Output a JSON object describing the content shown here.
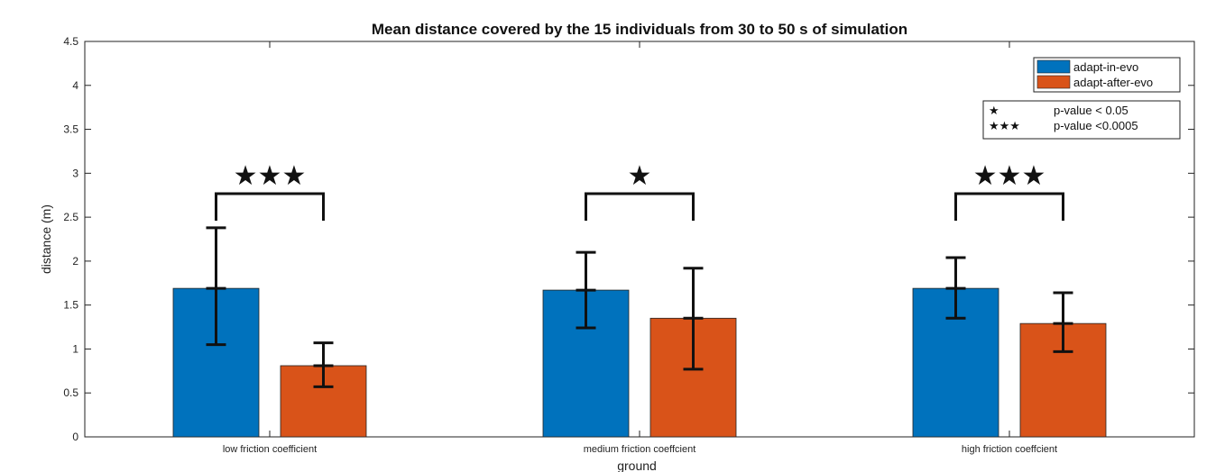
{
  "chart_data": {
    "type": "bar",
    "title": "Mean distance covered by the 15 individuals from 30 to 50 s of simulation",
    "xlabel": "ground",
    "ylabel": "distance (m)",
    "ylim": [
      0,
      4.5
    ],
    "yticks": [
      0,
      0.5,
      1,
      1.5,
      2,
      2.5,
      3,
      3.5,
      4,
      4.5
    ],
    "categories": [
      "low friction coefficient",
      "medium friction coeffcient",
      "high friction coeffcient"
    ],
    "series": [
      {
        "name": "adapt-in-evo",
        "color": "#0072BD",
        "values": [
          1.69,
          1.67,
          1.69
        ],
        "err_low": [
          1.05,
          1.24,
          1.35
        ],
        "err_high": [
          2.38,
          2.1,
          2.04
        ]
      },
      {
        "name": "adapt-after-evo",
        "color": "#D95319",
        "values": [
          0.81,
          1.35,
          1.29
        ],
        "err_low": [
          0.57,
          0.77,
          0.97
        ],
        "err_high": [
          1.07,
          1.92,
          1.64
        ]
      }
    ],
    "significance": [
      "★★★",
      "★",
      "★★★"
    ],
    "sig_legend": [
      {
        "symbol": "★",
        "label": "p-value < 0.05"
      },
      {
        "symbol": "★★★",
        "label": "p-value <0.0005"
      }
    ],
    "legend_position": "top-right",
    "grid": false
  }
}
